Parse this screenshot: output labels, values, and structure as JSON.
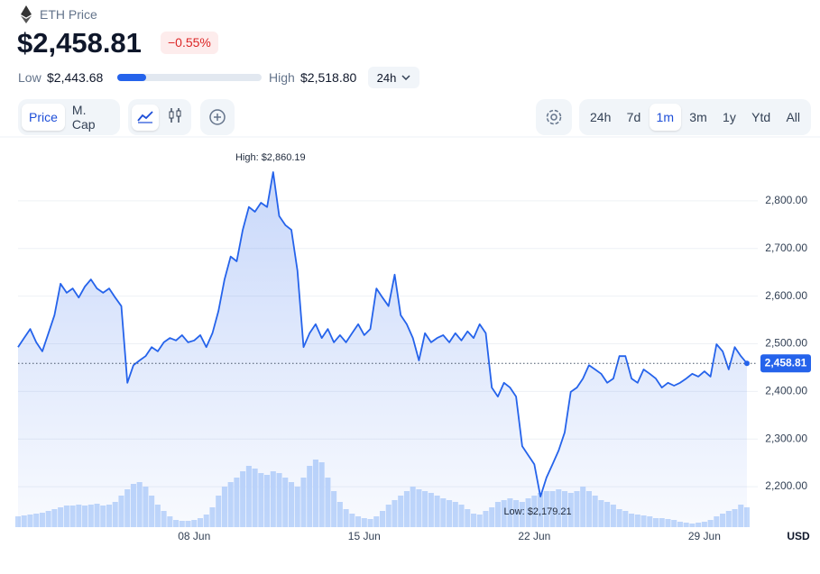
{
  "header": {
    "title": "ETH Price",
    "price": "$2,458.81",
    "change": "−0.55%",
    "low_label": "Low",
    "low": "$2,443.68",
    "high_label": "High",
    "high": "$2,518.80",
    "period": "24h"
  },
  "toolbar": {
    "views": [
      "Price",
      "M. Cap"
    ],
    "ranges": [
      "24h",
      "7d",
      "1m",
      "3m",
      "1y",
      "Ytd",
      "All"
    ]
  },
  "chart_data": {
    "type": "line",
    "grid": true,
    "y_label": "USD",
    "price_tag": "2,458.81",
    "high_label": "High: $2,860.19",
    "low_label": "Low: $2,179.21",
    "ylim": [
      2115,
      2900
    ],
    "yticks": [
      {
        "value": 2200,
        "label": "2,200.00"
      },
      {
        "value": 2300,
        "label": "2,300.00"
      },
      {
        "value": 2400,
        "label": "2,400.00"
      },
      {
        "value": 2500,
        "label": "2,500.00"
      },
      {
        "value": 2600,
        "label": "2,600.00"
      },
      {
        "value": 2700,
        "label": "2,700.00"
      },
      {
        "value": 2800,
        "label": "2,800.00"
      }
    ],
    "y2lim": [
      0,
      415
    ],
    "categories": [
      null,
      null,
      null,
      null,
      null,
      null,
      null,
      null,
      null,
      null,
      null,
      null,
      null,
      null,
      null,
      null,
      null,
      null,
      null,
      null,
      null,
      null,
      null,
      null,
      null,
      null,
      null,
      null,
      null,
      "08 Jun",
      null,
      null,
      null,
      null,
      null,
      null,
      null,
      null,
      null,
      null,
      null,
      null,
      null,
      null,
      null,
      null,
      null,
      null,
      null,
      null,
      null,
      null,
      null,
      null,
      null,
      null,
      null,
      "15 Jun",
      null,
      null,
      null,
      null,
      null,
      null,
      null,
      null,
      null,
      null,
      null,
      null,
      null,
      null,
      null,
      null,
      null,
      null,
      null,
      null,
      null,
      null,
      null,
      null,
      null,
      null,
      null,
      "22 Jun",
      null,
      null,
      null,
      null,
      null,
      null,
      null,
      null,
      null,
      null,
      null,
      null,
      null,
      null,
      null,
      null,
      null,
      null,
      null,
      null,
      null,
      null,
      null,
      null,
      null,
      null,
      null,
      "29 Jun",
      null,
      null,
      null,
      null,
      null,
      null,
      null
    ],
    "series": [
      {
        "color": "#2563eb",
        "values": [
          2493,
          2512,
          2531,
          2503,
          2484,
          2522,
          2560,
          2626,
          2607,
          2616,
          2597,
          2620,
          2635,
          2616,
          2607,
          2616,
          2597,
          2579,
          2418,
          2455,
          2465,
          2474,
          2493,
          2484,
          2503,
          2512,
          2507,
          2518,
          2503,
          2507,
          2518,
          2493,
          2522,
          2569,
          2635,
          2683,
          2673,
          2739,
          2787,
          2777,
          2796,
          2787,
          2860.19,
          2768,
          2749,
          2739,
          2654,
          2493,
          2522,
          2541,
          2512,
          2531,
          2503,
          2518,
          2503,
          2522,
          2541,
          2518,
          2531,
          2616,
          2597,
          2579,
          2645,
          2560,
          2541,
          2512,
          2465,
          2522,
          2503,
          2512,
          2518,
          2503,
          2522,
          2507,
          2526,
          2512,
          2541,
          2522,
          2408,
          2389,
          2418,
          2408,
          2389,
          2285,
          2266,
          2247,
          2179.21,
          2219,
          2247,
          2276,
          2314,
          2399,
          2408,
          2427,
          2455,
          2446,
          2437,
          2418,
          2427,
          2474,
          2474,
          2427,
          2418,
          2446,
          2437,
          2427,
          2408,
          2418,
          2412,
          2418,
          2427,
          2437,
          2431,
          2442,
          2431,
          2499,
          2484,
          2446,
          2493,
          2474,
          2458.81
        ]
      },
      {
        "color": "#c3d9fb",
        "axis": "y2",
        "values": [
          12,
          13,
          14,
          15,
          16,
          18,
          20,
          22,
          24,
          24,
          25,
          24,
          25,
          26,
          24,
          25,
          28,
          35,
          42,
          48,
          50,
          45,
          35,
          25,
          18,
          12,
          8,
          7,
          7,
          8,
          10,
          14,
          22,
          35,
          45,
          50,
          55,
          62,
          68,
          65,
          60,
          58,
          62,
          60,
          55,
          50,
          45,
          55,
          68,
          75,
          72,
          55,
          40,
          28,
          20,
          15,
          12,
          10,
          9,
          12,
          18,
          25,
          30,
          35,
          40,
          45,
          42,
          40,
          38,
          35,
          32,
          30,
          28,
          25,
          20,
          15,
          14,
          18,
          22,
          28,
          30,
          32,
          30,
          28,
          32,
          35,
          38,
          40,
          40,
          42,
          40,
          38,
          40,
          45,
          40,
          35,
          30,
          28,
          25,
          20,
          18,
          15,
          14,
          13,
          12,
          10,
          10,
          9,
          8,
          6,
          5,
          4,
          5,
          6,
          8,
          12,
          15,
          18,
          20,
          25,
          22
        ]
      }
    ]
  }
}
